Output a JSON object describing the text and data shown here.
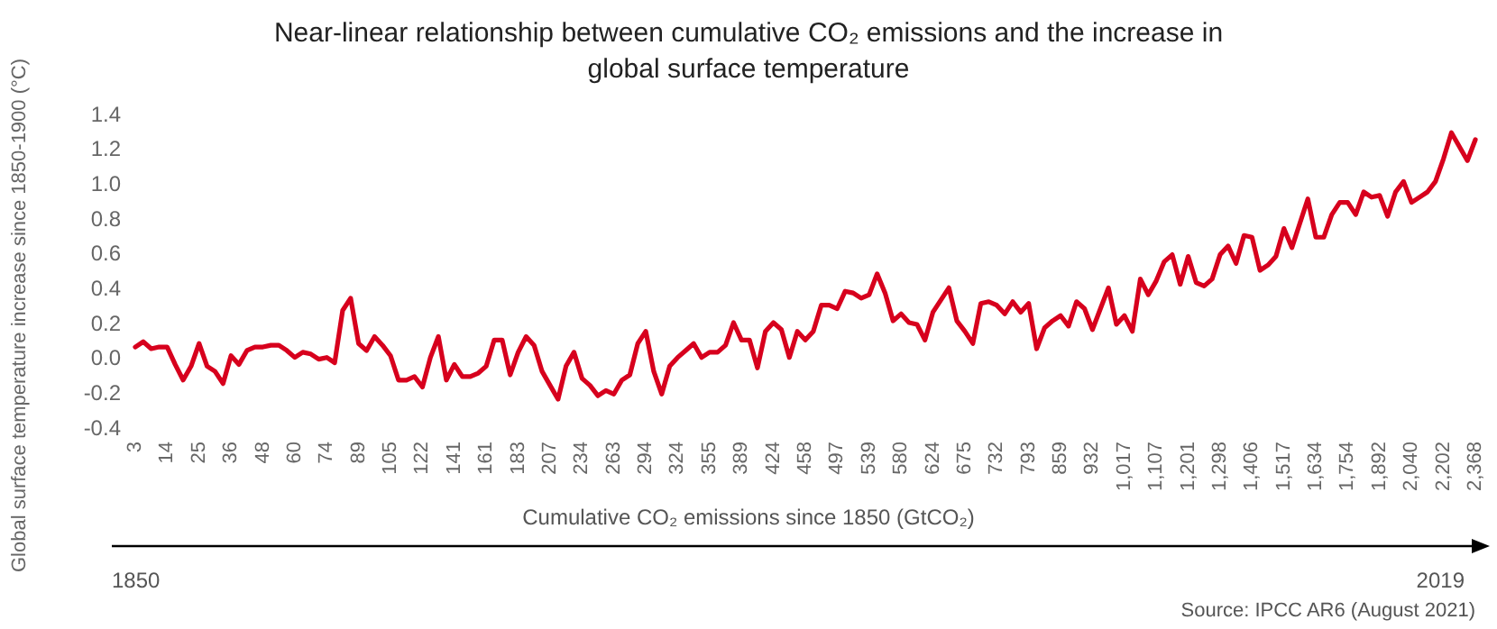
{
  "chart_data": {
    "type": "line",
    "title": "Near-linear relationship between cumulative CO₂ emissions and the increase in global surface temperature",
    "xlabel": "Cumulative CO₂ emissions since 1850 (GtCO₂)",
    "ylabel": "Global surface temperature increase since 1850-1900 (°C)",
    "annotations": [
      "1850",
      "2019",
      "Source: IPCC AR6 (August 2021)"
    ],
    "categories": [
      "3",
      null,
      null,
      null,
      "14",
      null,
      null,
      null,
      "25",
      null,
      null,
      null,
      "36",
      null,
      null,
      null,
      "48",
      null,
      null,
      null,
      "60",
      null,
      null,
      null,
      "74",
      null,
      null,
      null,
      "89",
      null,
      null,
      null,
      "105",
      null,
      null,
      null,
      "122",
      null,
      null,
      null,
      "141",
      null,
      null,
      null,
      "161",
      null,
      null,
      null,
      "183",
      null,
      null,
      null,
      "207",
      null,
      null,
      null,
      "234",
      null,
      null,
      null,
      "263",
      null,
      null,
      null,
      "294",
      null,
      null,
      null,
      "324",
      null,
      null,
      null,
      "355",
      null,
      null,
      null,
      "389",
      null,
      null,
      null,
      "424",
      null,
      null,
      null,
      "458",
      null,
      null,
      null,
      "497",
      null,
      null,
      null,
      "539",
      null,
      null,
      null,
      "580",
      null,
      null,
      null,
      "624",
      null,
      null,
      null,
      "675",
      null,
      null,
      null,
      "732",
      null,
      null,
      null,
      "793",
      null,
      null,
      null,
      "859",
      null,
      null,
      null,
      "932",
      null,
      null,
      null,
      "1,017",
      null,
      null,
      null,
      "1,107",
      null,
      null,
      null,
      "1,201",
      null,
      null,
      null,
      "1,298",
      null,
      null,
      null,
      "1,406",
      null,
      null,
      null,
      "1,517",
      null,
      null,
      null,
      "1,634",
      null,
      null,
      null,
      "1,754",
      null,
      null,
      null,
      "1,892",
      null,
      null,
      null,
      "2,040",
      null,
      null,
      null,
      "2,202",
      null,
      null,
      null,
      "2,368"
    ],
    "series": [
      {
        "color": "#d7001d",
        "values": [
          0.06,
          0.09,
          0.05,
          0.06,
          0.06,
          -0.04,
          -0.13,
          -0.05,
          0.08,
          -0.05,
          -0.08,
          -0.15,
          0.01,
          -0.04,
          0.04,
          0.06,
          0.06,
          0.07,
          0.07,
          0.04,
          0.0,
          0.03,
          0.02,
          -0.01,
          0.0,
          -0.03,
          0.27,
          0.34,
          0.08,
          0.04,
          0.12,
          0.07,
          0.01,
          -0.13,
          -0.13,
          -0.11,
          -0.17,
          0.0,
          0.12,
          -0.13,
          -0.04,
          -0.11,
          -0.11,
          -0.09,
          -0.05,
          0.1,
          0.1,
          -0.1,
          0.03,
          0.12,
          0.07,
          -0.08,
          -0.16,
          -0.24,
          -0.05,
          0.03,
          -0.12,
          -0.16,
          -0.22,
          -0.19,
          -0.21,
          -0.13,
          -0.1,
          0.08,
          0.15,
          -0.08,
          -0.21,
          -0.05,
          0.0,
          0.04,
          0.08,
          0.0,
          0.03,
          0.03,
          0.07,
          0.2,
          0.1,
          0.1,
          -0.06,
          0.15,
          0.2,
          0.16,
          0.0,
          0.15,
          0.1,
          0.15,
          0.3,
          0.3,
          0.28,
          0.38,
          0.37,
          0.34,
          0.36,
          0.48,
          0.37,
          0.21,
          0.25,
          0.2,
          0.19,
          0.1,
          0.26,
          0.33,
          0.4,
          0.21,
          0.15,
          0.08,
          0.31,
          0.32,
          0.3,
          0.25,
          0.32,
          0.26,
          0.31,
          0.05,
          0.17,
          0.21,
          0.24,
          0.18,
          0.32,
          0.28,
          0.16,
          0.28,
          0.4,
          0.19,
          0.24,
          0.15,
          0.45,
          0.36,
          0.44,
          0.55,
          0.59,
          0.42,
          0.58,
          0.43,
          0.41,
          0.45,
          0.59,
          0.64,
          0.54,
          0.7,
          0.69,
          0.5,
          0.53,
          0.58,
          0.74,
          0.63,
          0.77,
          0.91,
          0.69,
          0.69,
          0.82,
          0.89,
          0.89,
          0.82,
          0.95,
          0.92,
          0.93,
          0.81,
          0.95,
          1.01,
          0.89,
          0.92,
          0.95,
          1.01,
          1.14,
          1.29,
          1.21,
          1.13,
          1.25
        ]
      }
    ],
    "ylim": [
      -0.4,
      1.4
    ],
    "yticks": [
      {
        "value": -0.4,
        "label": "-0.4"
      },
      {
        "value": -0.2,
        "label": "-0.2"
      },
      {
        "value": 0,
        "label": "0.0"
      },
      {
        "value": 0.2,
        "label": "0.2"
      },
      {
        "value": 0.4,
        "label": "0.4"
      },
      {
        "value": 0.6,
        "label": "0.6"
      },
      {
        "value": 0.8,
        "label": "0.8"
      },
      {
        "value": 1,
        "label": "1.0"
      },
      {
        "value": 1.2,
        "label": "1.2"
      },
      {
        "value": 1.4,
        "label": "1.4"
      }
    ],
    "marker": "none",
    "line_style": "solid"
  }
}
